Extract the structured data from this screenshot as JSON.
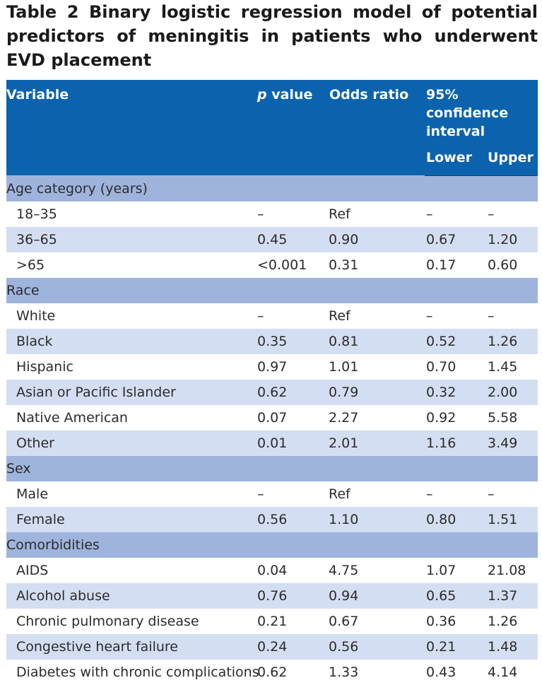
{
  "title": {
    "label": "Table 2",
    "text": "Binary logistic regression model of potential predictors of meningitis in patients who underwent EVD placement"
  },
  "header": {
    "variable": "Variable",
    "p_letter": "p",
    "p_rest": " value",
    "odds_ratio": "Odds ratio",
    "ci": "95% confidence interval",
    "lower": "Lower",
    "upper": "Upper"
  },
  "sections": [
    {
      "label": "Age category (years)",
      "rows": [
        {
          "variable": "18–35",
          "p": "–",
          "or": "Ref",
          "lower": "–",
          "upper": "–"
        },
        {
          "variable": "36–65",
          "p": "0.45",
          "or": "0.90",
          "lower": "0.67",
          "upper": "1.20"
        },
        {
          "variable": ">65",
          "p": "<0.001",
          "or": "0.31",
          "lower": "0.17",
          "upper": "0.60"
        }
      ]
    },
    {
      "label": "Race",
      "rows": [
        {
          "variable": "White",
          "p": "–",
          "or": "Ref",
          "lower": "–",
          "upper": "–"
        },
        {
          "variable": "Black",
          "p": "0.35",
          "or": "0.81",
          "lower": "0.52",
          "upper": "1.26"
        },
        {
          "variable": "Hispanic",
          "p": "0.97",
          "or": "1.01",
          "lower": "0.70",
          "upper": "1.45"
        },
        {
          "variable": "Asian or Pacific Islander",
          "p": "0.62",
          "or": "0.79",
          "lower": "0.32",
          "upper": "2.00"
        },
        {
          "variable": "Native American",
          "p": "0.07",
          "or": "2.27",
          "lower": "0.92",
          "upper": "5.58"
        },
        {
          "variable": "Other",
          "p": "0.01",
          "or": "2.01",
          "lower": "1.16",
          "upper": "3.49"
        }
      ]
    },
    {
      "label": "Sex",
      "rows": [
        {
          "variable": "Male",
          "p": "–",
          "or": "Ref",
          "lower": "–",
          "upper": "–"
        },
        {
          "variable": "Female",
          "p": "0.56",
          "or": "1.10",
          "lower": "0.80",
          "upper": "1.51"
        }
      ]
    },
    {
      "label": "Comorbidities",
      "rows": [
        {
          "variable": "AIDS",
          "p": "0.04",
          "or": "4.75",
          "lower": "1.07",
          "upper": "21.08"
        },
        {
          "variable": "Alcohol abuse",
          "p": "0.76",
          "or": "0.94",
          "lower": "0.65",
          "upper": "1.37"
        },
        {
          "variable": "Chronic pulmonary disease",
          "p": "0.21",
          "or": "0.67",
          "lower": "0.36",
          "upper": "1.26"
        },
        {
          "variable": "Congestive heart failure",
          "p": "0.24",
          "or": "0.56",
          "lower": "0.21",
          "upper": "1.48"
        },
        {
          "variable": "Diabetes with chronic complications",
          "p": "0.62",
          "or": "1.33",
          "lower": "0.43",
          "upper": "4.14"
        }
      ]
    }
  ],
  "colors": {
    "header_bg": "#0b63ae",
    "group_bg": "#9fb4dd",
    "band_bg": "#d4def2"
  }
}
